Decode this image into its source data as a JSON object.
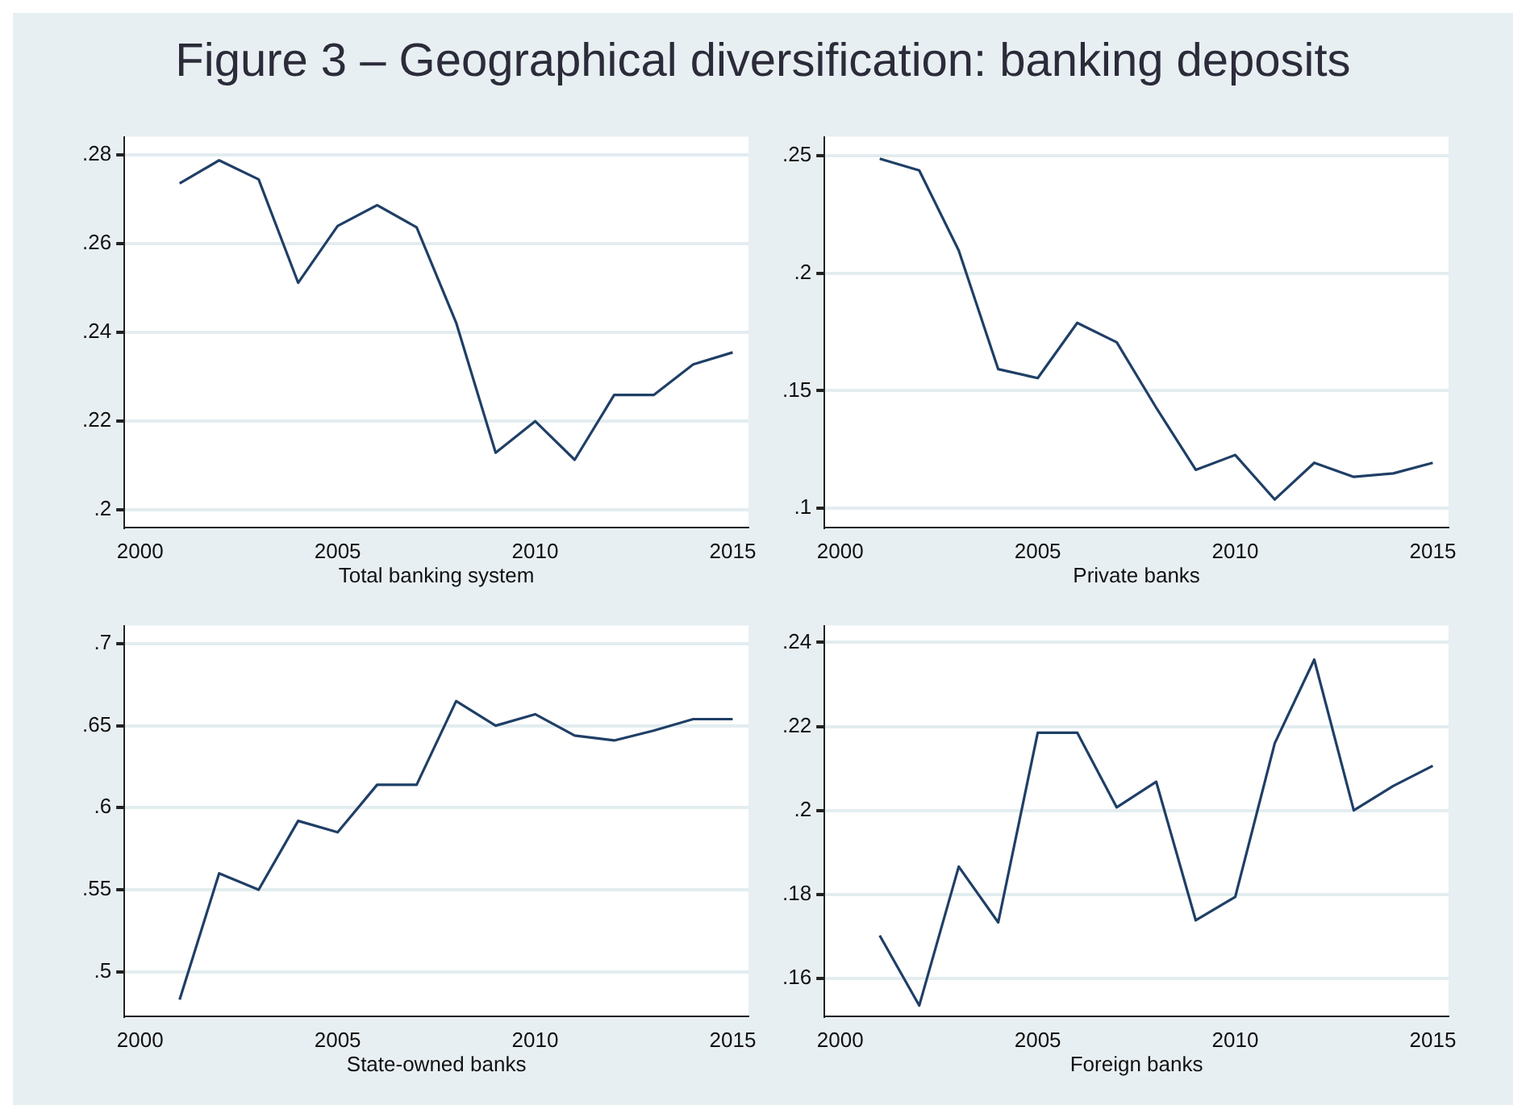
{
  "chart_data": [
    {
      "type": "line",
      "title": "Figure 3 – Geographical diversification: banking deposits",
      "xlabel": "Total banking system",
      "x": [
        2001,
        2002,
        2003,
        2004,
        2005,
        2006,
        2007,
        2008,
        2009,
        2010,
        2011,
        2012,
        2013,
        2014,
        2015
      ],
      "series": [
        {
          "color": "#1f3f66",
          "values": [
            0.2735,
            0.2787,
            0.2744,
            0.2511,
            0.2639,
            0.2686,
            0.2636,
            0.2421,
            0.2128,
            0.2199,
            0.2112,
            0.2258,
            0.2258,
            0.2327,
            0.2354
          ]
        }
      ],
      "xlim": [
        1999.6,
        2015.4
      ],
      "xticks": [
        2000,
        2005,
        2010,
        2015
      ],
      "ylim": [
        0.196,
        0.284
      ],
      "yticks": [
        {
          "value": 0.2,
          "label": ".2"
        },
        {
          "value": 0.22,
          "label": ".22"
        },
        {
          "value": 0.24,
          "label": ".24"
        },
        {
          "value": 0.26,
          "label": ".26"
        },
        {
          "value": 0.28,
          "label": ".28"
        }
      ],
      "grid": "y",
      "marker": "none",
      "line_style": "solid",
      "legend": false
    },
    {
      "type": "line",
      "xlabel": "Private banks",
      "x": [
        2001,
        2002,
        2003,
        2004,
        2005,
        2006,
        2007,
        2008,
        2009,
        2010,
        2011,
        2012,
        2013,
        2014,
        2015
      ],
      "series": [
        {
          "color": "#1f3f66",
          "values": [
            0.2487,
            0.2437,
            0.2097,
            0.1592,
            0.1554,
            0.1789,
            0.1706,
            0.1428,
            0.1164,
            0.1227,
            0.1038,
            0.1194,
            0.1134,
            0.1149,
            0.1194
          ]
        }
      ],
      "xlim": [
        1999.6,
        2015.4
      ],
      "xticks": [
        2000,
        2005,
        2010,
        2015
      ],
      "ylim": [
        0.092,
        0.258
      ],
      "yticks": [
        {
          "value": 0.1,
          "label": ".1"
        },
        {
          "value": 0.15,
          "label": ".15"
        },
        {
          "value": 0.2,
          "label": ".2"
        },
        {
          "value": 0.25,
          "label": ".25"
        }
      ],
      "grid": "y",
      "marker": "none",
      "line_style": "solid",
      "legend": false
    },
    {
      "type": "line",
      "xlabel": "State-owned banks",
      "x": [
        2001,
        2002,
        2003,
        2004,
        2005,
        2006,
        2007,
        2008,
        2009,
        2010,
        2011,
        2012,
        2013,
        2014,
        2015
      ],
      "series": [
        {
          "color": "#1f3f66",
          "values": [
            0.483,
            0.56,
            0.55,
            0.592,
            0.585,
            0.614,
            0.614,
            0.665,
            0.65,
            0.657,
            0.644,
            0.641,
            0.647,
            0.654,
            0.654
          ]
        }
      ],
      "xlim": [
        1999.6,
        2015.4
      ],
      "xticks": [
        2000,
        2005,
        2010,
        2015
      ],
      "ylim": [
        0.473,
        0.711
      ],
      "yticks": [
        {
          "value": 0.5,
          "label": ".5"
        },
        {
          "value": 0.55,
          "label": ".55"
        },
        {
          "value": 0.6,
          "label": ".6"
        },
        {
          "value": 0.65,
          "label": ".65"
        },
        {
          "value": 0.7,
          "label": ".7"
        }
      ],
      "grid": "y",
      "marker": "none",
      "line_style": "solid",
      "legend": false
    },
    {
      "type": "line",
      "xlabel": "Foreign banks",
      "x": [
        2001,
        2002,
        2003,
        2004,
        2005,
        2006,
        2007,
        2008,
        2009,
        2010,
        2011,
        2012,
        2013,
        2014,
        2015
      ],
      "series": [
        {
          "color": "#1f3f66",
          "values": [
            0.1702,
            0.1535,
            0.1866,
            0.1733,
            0.2185,
            0.2185,
            0.2007,
            0.2068,
            0.1738,
            0.1794,
            0.216,
            0.2359,
            0.2,
            0.2058,
            0.2106
          ]
        }
      ],
      "xlim": [
        1999.6,
        2015.4
      ],
      "xticks": [
        2000,
        2005,
        2010,
        2015
      ],
      "ylim": [
        0.151,
        0.244
      ],
      "yticks": [
        {
          "value": 0.16,
          "label": ".16"
        },
        {
          "value": 0.18,
          "label": ".18"
        },
        {
          "value": 0.2,
          "label": ".2"
        },
        {
          "value": 0.22,
          "label": ".22"
        },
        {
          "value": 0.24,
          "label": ".24"
        }
      ],
      "grid": "y",
      "marker": "none",
      "line_style": "solid",
      "legend": false
    }
  ]
}
